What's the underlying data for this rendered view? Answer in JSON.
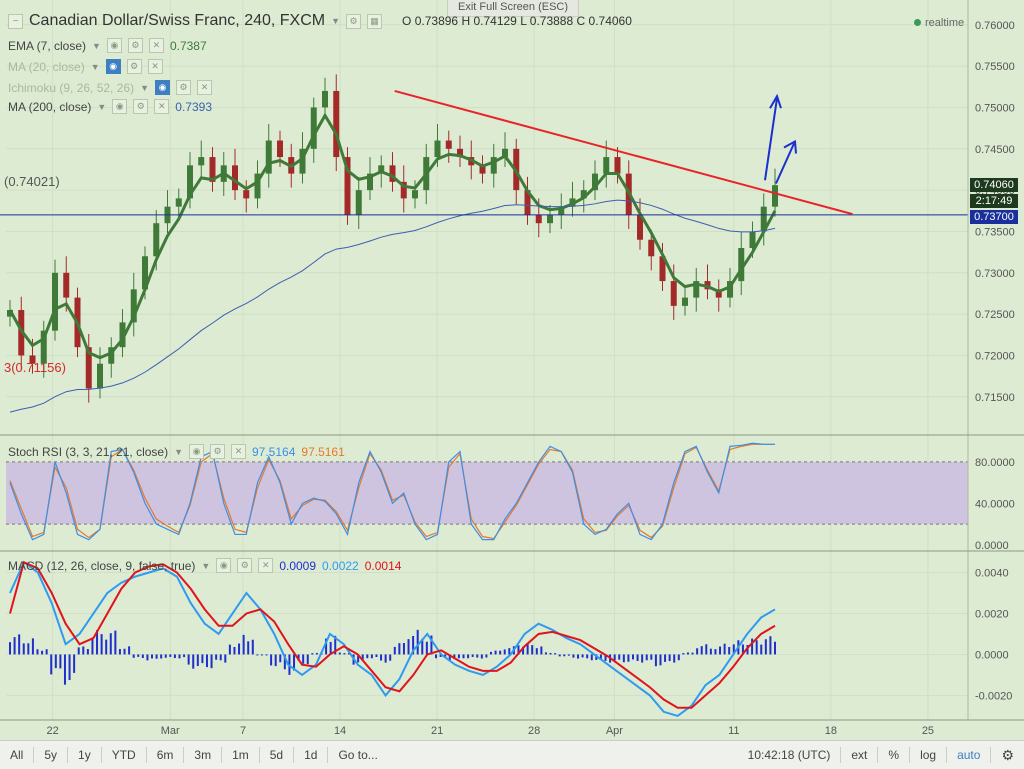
{
  "window": {
    "exit_fullscreen": "Exit Full Screen (ESC)",
    "realtime": "realtime"
  },
  "header": {
    "symbol": "Canadian Dollar/Swiss Franc, 240, FXCM",
    "ohlc": {
      "o_label": "O",
      "o": "0.73896",
      "h_label": "H",
      "h": "0.74129",
      "l_label": "L",
      "l": "0.73888",
      "c_label": "C",
      "c": "0.74060"
    }
  },
  "indicators": {
    "ema": {
      "label": "EMA (7, close)",
      "value": "0.7387"
    },
    "ma20": {
      "label": "MA (20, close)"
    },
    "ichimoku": {
      "label": "Ichimoku (9, 26, 52, 26)"
    },
    "ma200": {
      "label": "MA (200, close)",
      "value": "0.7393"
    },
    "stoch": {
      "label": "Stoch RSI (3, 3, 21, 21, close)",
      "k": "97.5164",
      "d": "97.5161"
    },
    "macd": {
      "label": "MACD (12, 26, close, 9, false, true)",
      "hist": "0.0009",
      "macd": "0.0022",
      "signal": "0.0014"
    }
  },
  "chart_labels": {
    "hline_left": "(0.74021)",
    "low_left": "3(0.71156)"
  },
  "price_tags": {
    "last": "0.74060",
    "countdown": "2:17:49",
    "hline": "0.73700"
  },
  "toolbar": {
    "ranges": [
      "All",
      "5y",
      "1y",
      "YTD",
      "6m",
      "3m",
      "1m",
      "5d",
      "1d"
    ],
    "goto": "Go to...",
    "time": "10:42:18 (UTC)",
    "right": [
      "ext",
      "%",
      "log",
      "auto"
    ]
  },
  "colors": {
    "background": "#ddebd3",
    "bull": "#3f7a38",
    "bear": "#a42a2a",
    "ema": "#3f7a38",
    "ma200": "#3b5fb0",
    "trendline": "#e8242a",
    "arrow": "#1a2fd0",
    "hline": "#1a2f9c",
    "stoch_k": "#3b8fe6",
    "stoch_d": "#e8782a",
    "stoch_band": "#cbbde2",
    "macd_line": "#2e9bf0",
    "macd_signal": "#e0141a",
    "macd_hist": "#1f2fcc"
  },
  "chart_data": [
    {
      "type": "candlestick",
      "title": "Canadian Dollar/Swiss Franc, 240, FXCM",
      "x_ticks": [
        "22",
        "Mar",
        "7",
        "14",
        "21",
        "28",
        "Apr",
        "11",
        "18",
        "25"
      ],
      "y_ticks": [
        "0.76000",
        "0.75500",
        "0.75000",
        "0.74500",
        "0.74000",
        "0.73500",
        "0.73000",
        "0.72500",
        "0.72000",
        "0.71500"
      ],
      "ylim": [
        0.7105,
        0.763
      ],
      "horizontal_line": 0.737,
      "trendline": [
        {
          "x": 0.404,
          "y": 0.752
        },
        {
          "x": 0.88,
          "y": 0.7371
        }
      ],
      "close_path": [
        0.7255,
        0.72,
        0.719,
        0.723,
        0.73,
        0.727,
        0.721,
        0.716,
        0.719,
        0.721,
        0.724,
        0.728,
        0.732,
        0.736,
        0.738,
        0.739,
        0.743,
        0.744,
        0.741,
        0.743,
        0.74,
        0.739,
        0.742,
        0.746,
        0.744,
        0.742,
        0.745,
        0.75,
        0.752,
        0.744,
        0.737,
        0.74,
        0.742,
        0.743,
        0.741,
        0.739,
        0.74,
        0.744,
        0.746,
        0.745,
        0.744,
        0.743,
        0.742,
        0.744,
        0.745,
        0.74,
        0.737,
        0.736,
        0.737,
        0.738,
        0.739,
        0.74,
        0.742,
        0.744,
        0.742,
        0.737,
        0.734,
        0.732,
        0.729,
        0.726,
        0.727,
        0.729,
        0.728,
        0.727,
        0.729,
        0.733,
        0.735,
        0.738,
        0.7406
      ]
    },
    {
      "type": "line",
      "title": "Stoch RSI (3, 3, 21, 21, close)",
      "y_ticks": [
        "80.0000",
        "40.0000",
        "0.0000"
      ],
      "ylim": [
        -5,
        105
      ],
      "band": [
        20,
        80
      ],
      "k": [
        60,
        30,
        5,
        10,
        80,
        50,
        10,
        5,
        15,
        90,
        92,
        70,
        40,
        20,
        15,
        10,
        40,
        85,
        90,
        40,
        10,
        10,
        60,
        85,
        60,
        20,
        40,
        45,
        42,
        30,
        10,
        60,
        90,
        70,
        40,
        50,
        20,
        5,
        10,
        80,
        90,
        20,
        5,
        5,
        25,
        40,
        60,
        80,
        95,
        90,
        70,
        20,
        10,
        15,
        30,
        40,
        10,
        5,
        20,
        60,
        90,
        95,
        70,
        50,
        95,
        96,
        98,
        97,
        97
      ],
      "d": [
        62,
        35,
        8,
        12,
        75,
        55,
        15,
        7,
        15,
        85,
        92,
        72,
        45,
        25,
        18,
        12,
        38,
        80,
        88,
        45,
        15,
        12,
        55,
        82,
        62,
        25,
        38,
        44,
        43,
        32,
        14,
        55,
        88,
        72,
        43,
        48,
        22,
        8,
        12,
        75,
        88,
        25,
        8,
        6,
        22,
        38,
        58,
        78,
        92,
        90,
        72,
        25,
        12,
        14,
        28,
        38,
        14,
        7,
        18,
        55,
        88,
        94,
        72,
        52,
        92,
        95,
        97,
        97,
        97
      ]
    },
    {
      "type": "bar+line",
      "title": "MACD (12, 26, close, 9, false, true)",
      "y_ticks": [
        "0.0040",
        "0.0020",
        "0.0000",
        "-0.0020"
      ],
      "ylim": [
        -0.0032,
        0.005
      ],
      "macd": [
        0.003,
        0.0045,
        0.004,
        0.0025,
        0.0005,
        0.001,
        0.002,
        0.003,
        0.0035,
        0.0038,
        0.004,
        0.0042,
        0.0038,
        0.0025,
        0.0015,
        0.001,
        0.002,
        0.003,
        0.0022,
        0.001,
        -0.0005,
        -0.001,
        -0.0005,
        0.001,
        0.0005,
        -0.0005,
        -0.001,
        -0.002,
        -0.0012,
        0.0002,
        0.001,
        0.0,
        -0.0005,
        -0.0008,
        -0.001,
        -0.0006,
        0.0,
        0.001,
        0.0015,
        0.0012,
        0.0008,
        0.0005,
        0.0,
        -0.0005,
        -0.001,
        -0.0015,
        -0.002,
        -0.0028,
        -0.003,
        -0.0025,
        -0.0015,
        -0.001,
        0.0,
        0.001,
        0.0018,
        0.0022
      ],
      "signal": [
        0.002,
        0.0045,
        0.0042,
        0.003,
        0.0015,
        0.0005,
        0.0008,
        0.002,
        0.0032,
        0.004,
        0.0043,
        0.0044,
        0.004,
        0.0032,
        0.0022,
        0.0014,
        0.0014,
        0.002,
        0.0022,
        0.0016,
        0.0005,
        -0.0005,
        -0.0006,
        0.0,
        0.0004,
        0.0,
        -0.0008,
        -0.0016,
        -0.0018,
        -0.001,
        0.0,
        0.0002,
        -0.0002,
        -0.0006,
        -0.0008,
        -0.0008,
        -0.0004,
        0.0004,
        0.001,
        0.0011,
        0.0009,
        0.0007,
        0.0003,
        -0.0001,
        -0.0006,
        -0.0011,
        -0.0016,
        -0.0022,
        -0.0026,
        -0.0026,
        -0.002,
        -0.0014,
        -0.0006,
        0.0003,
        0.001,
        0.0014
      ],
      "hist": [
        0.001,
        0.0008,
        0.0003,
        -0.001,
        -0.0015,
        0.0004,
        0.0012,
        0.0012,
        0.0004,
        -0.0002,
        -0.0003,
        -0.0002,
        -0.0002,
        -0.0007,
        -0.0007,
        -0.0004,
        0.0006,
        0.001,
        0.0,
        -0.0006,
        -0.001,
        -0.0005,
        0.0001,
        0.001,
        0.0001,
        -0.0005,
        -0.0002,
        -0.0004,
        0.0006,
        0.0012,
        0.001,
        -0.0002,
        -0.0003,
        -0.0002,
        -0.0002,
        0.0002,
        0.0004,
        0.0006,
        0.0005,
        0.0001,
        -0.0001,
        -0.0002,
        -0.0003,
        -0.0004,
        -0.0004,
        -0.0004,
        -0.0004,
        -0.0006,
        -0.0004,
        0.0001,
        0.0005,
        0.0004,
        0.0006,
        0.0007,
        0.0008,
        0.0009
      ]
    }
  ]
}
